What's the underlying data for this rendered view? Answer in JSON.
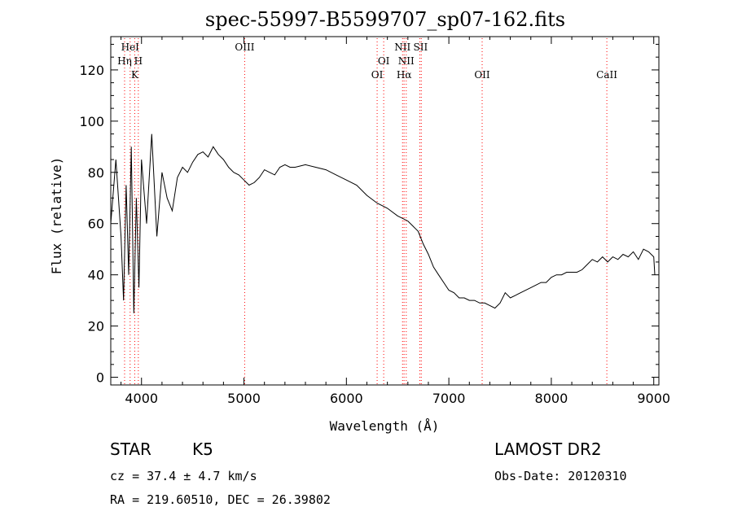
{
  "chart_data": {
    "type": "line",
    "title": "spec-55997-B5599707_sp07-162.fits",
    "xlabel": "Wavelength (Å)",
    "ylabel": "Flux (relative)",
    "xlim": [
      3700,
      9050
    ],
    "ylim": [
      -3,
      133
    ],
    "xticks": [
      4000,
      5000,
      6000,
      7000,
      8000,
      9000
    ],
    "yticks": [
      0,
      20,
      40,
      60,
      80,
      100,
      120
    ],
    "grid": false,
    "line_color": "#000000",
    "marker_color": "#ff0000",
    "lines": [
      {
        "name": "HeI",
        "wavelengths": [
          3889
        ],
        "label_row": 1
      },
      {
        "name": "Hη",
        "wavelengths": [
          3835
        ],
        "label_row": 2
      },
      {
        "name": "H",
        "wavelengths": [
          3969
        ],
        "label_row": 2
      },
      {
        "name": "K",
        "wavelengths": [
          3934
        ],
        "label_row": 3
      },
      {
        "name": "OIII",
        "wavelengths": [
          5007
        ],
        "label_row": 1
      },
      {
        "name": "OI",
        "wavelengths": [
          6300
        ],
        "label_row": 3
      },
      {
        "name": "OI",
        "wavelengths": [
          6364
        ],
        "label_row": 2
      },
      {
        "name": "NII",
        "wavelengths": [
          6548
        ],
        "label_row": 1
      },
      {
        "name": "NII",
        "wavelengths": [
          6584
        ],
        "label_row": 2
      },
      {
        "name": "Hα",
        "wavelengths": [
          6563
        ],
        "label_row": 3
      },
      {
        "name": "SII",
        "wavelengths": [
          6717,
          6731
        ],
        "label_row": 1
      },
      {
        "name": "OII",
        "wavelengths": [
          7325
        ],
        "label_row": 3
      },
      {
        "name": "CaII",
        "wavelengths": [
          8542
        ],
        "label_row": 3
      }
    ],
    "series": [
      {
        "x": [
          3700,
          3750,
          3800,
          3825,
          3850,
          3875,
          3900,
          3925,
          3950,
          3975,
          4000,
          4050,
          4100,
          4150,
          4200,
          4250,
          4300,
          4350,
          4400,
          4450,
          4500,
          4550,
          4600,
          4650,
          4700,
          4750,
          4800,
          4850,
          4900,
          4950,
          5000,
          5050,
          5100,
          5150,
          5200,
          5250,
          5300,
          5350,
          5400,
          5450,
          5500,
          5600,
          5700,
          5800,
          5900,
          6000,
          6100,
          6200,
          6300,
          6400,
          6500,
          6550,
          6600,
          6650,
          6700,
          6750,
          6800,
          6850,
          6900,
          6950,
          7000,
          7050,
          7100,
          7150,
          7200,
          7250,
          7300,
          7350,
          7400,
          7450,
          7500,
          7550,
          7600,
          7650,
          7700,
          7750,
          7800,
          7850,
          7900,
          7950,
          8000,
          8050,
          8100,
          8150,
          8200,
          8250,
          8300,
          8350,
          8400,
          8450,
          8500,
          8550,
          8600,
          8650,
          8700,
          8750,
          8800,
          8850,
          8900,
          8950,
          9000,
          9010
        ],
        "y": [
          60,
          85,
          55,
          30,
          75,
          40,
          90,
          25,
          70,
          35,
          85,
          60,
          95,
          55,
          80,
          70,
          65,
          78,
          82,
          80,
          84,
          87,
          88,
          86,
          90,
          87,
          85,
          82,
          80,
          79,
          77,
          75,
          76,
          78,
          81,
          80,
          79,
          82,
          83,
          82,
          82,
          83,
          82,
          81,
          79,
          77,
          75,
          71,
          68,
          66,
          63,
          62,
          61,
          59,
          57,
          52,
          48,
          43,
          40,
          37,
          34,
          33,
          31,
          31,
          30,
          30,
          29,
          29,
          28,
          27,
          29,
          33,
          31,
          32,
          33,
          34,
          35,
          36,
          37,
          37,
          39,
          40,
          40,
          41,
          41,
          41,
          42,
          44,
          46,
          45,
          47,
          45,
          47,
          46,
          48,
          47,
          49,
          46,
          50,
          49,
          47,
          40
        ]
      }
    ]
  },
  "info": {
    "object_class": "STAR",
    "subclass": "K5",
    "cz": "cz = 37.4 ± 4.7 km/s",
    "radec": "RA = 219.60510, DEC =  26.39802",
    "survey": "LAMOST DR2",
    "obs_date": "Obs-Date: 20120310"
  }
}
